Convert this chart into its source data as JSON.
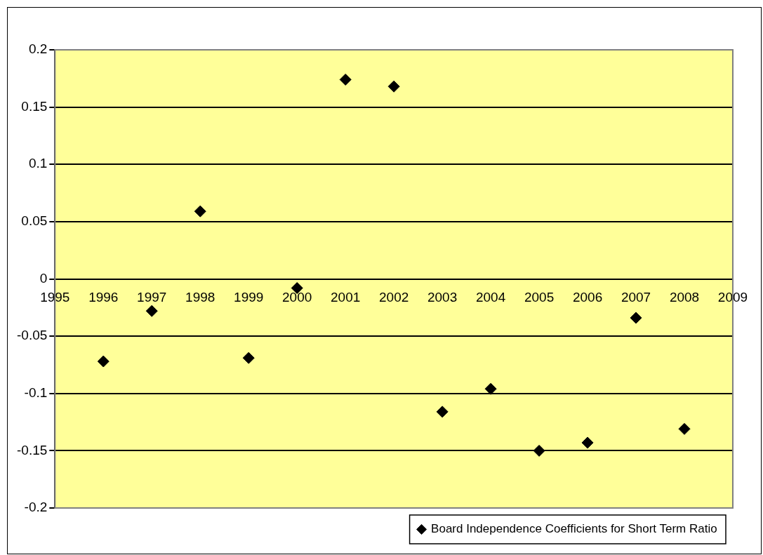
{
  "chart_data": {
    "type": "scatter",
    "x": [
      1996,
      1997,
      1998,
      1999,
      2000,
      2001,
      2002,
      2003,
      2004,
      2005,
      2006,
      2007,
      2008
    ],
    "series": [
      {
        "name": "Board Independence Coefficients for Short Term Ratio",
        "color": "#000000",
        "values": [
          -0.072,
          -0.028,
          0.059,
          -0.069,
          -0.008,
          0.174,
          0.168,
          -0.116,
          -0.096,
          -0.15,
          -0.143,
          -0.034,
          -0.131
        ]
      }
    ],
    "xlim": [
      1995,
      2009
    ],
    "xticks": [
      1995,
      1996,
      1997,
      1998,
      1999,
      2000,
      2001,
      2002,
      2003,
      2004,
      2005,
      2006,
      2007,
      2008,
      2009
    ],
    "ylim": [
      -0.2,
      0.2
    ],
    "yticks": [
      -0.2,
      -0.15,
      -0.1,
      -0.05,
      0,
      0.05,
      0.1,
      0.15,
      0.2
    ],
    "grid": "y",
    "legend": "bottom right",
    "marker": "diamond"
  }
}
